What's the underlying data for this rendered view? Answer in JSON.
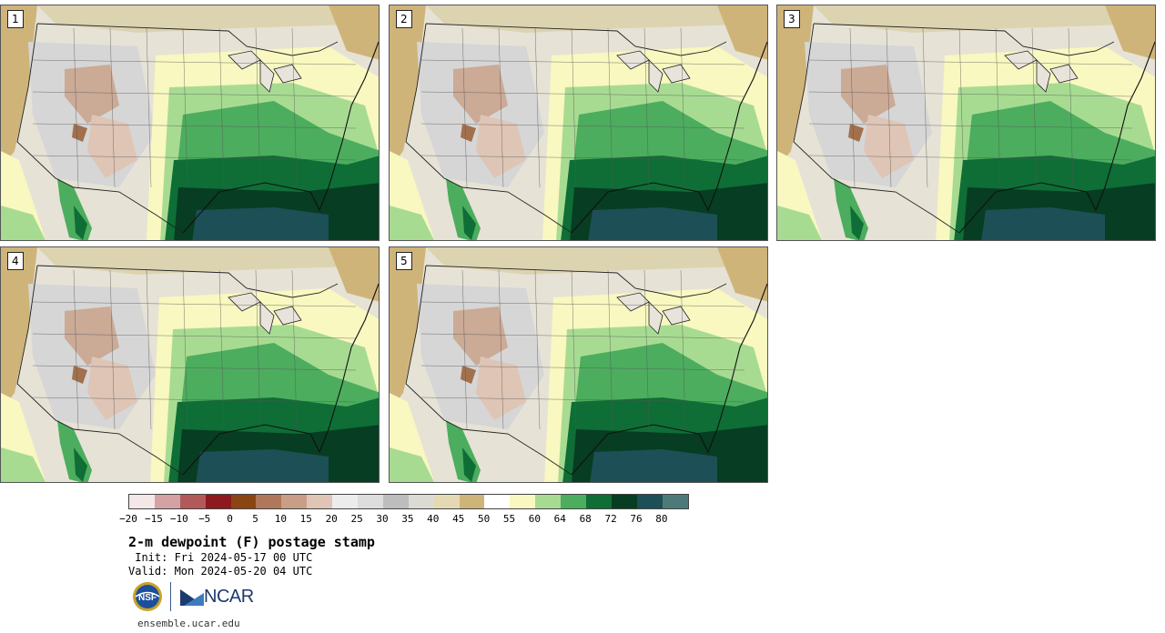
{
  "panels": [
    {
      "label": "1"
    },
    {
      "label": "2"
    },
    {
      "label": "3"
    },
    {
      "label": "4"
    },
    {
      "label": "5"
    }
  ],
  "colorbar": {
    "colors": [
      "#f3e7e7",
      "#d4a2a2",
      "#b25a5a",
      "#8e1a1f",
      "#8b4513",
      "#b0775a",
      "#c89f86",
      "#dfc5b5",
      "#ececec",
      "#dddddd",
      "#bdbdbd",
      "#dcdbd3",
      "#e4d9b3",
      "#cfb47a",
      "#ffffff",
      "#f8f8c0",
      "#a8db92",
      "#4cad5e",
      "#0e6e36",
      "#073d22",
      "#1d4f57",
      "#4d7a79"
    ],
    "ticks": [
      "−20",
      "−15",
      "−10",
      "−5",
      "0",
      "5",
      "10",
      "15",
      "20",
      "25",
      "30",
      "35",
      "40",
      "45",
      "50",
      "55",
      "60",
      "64",
      "68",
      "72",
      "76",
      "80"
    ]
  },
  "title": "2-m dewpoint (F) postage stamp",
  "init": " Init: Fri 2024-05-17 00 UTC",
  "valid": "Valid: Mon 2024-05-20 04 UTC",
  "logo": {
    "nsf_text": "NSF",
    "ncar_text": "NCAR"
  },
  "url": "ensemble.ucar.edu"
}
